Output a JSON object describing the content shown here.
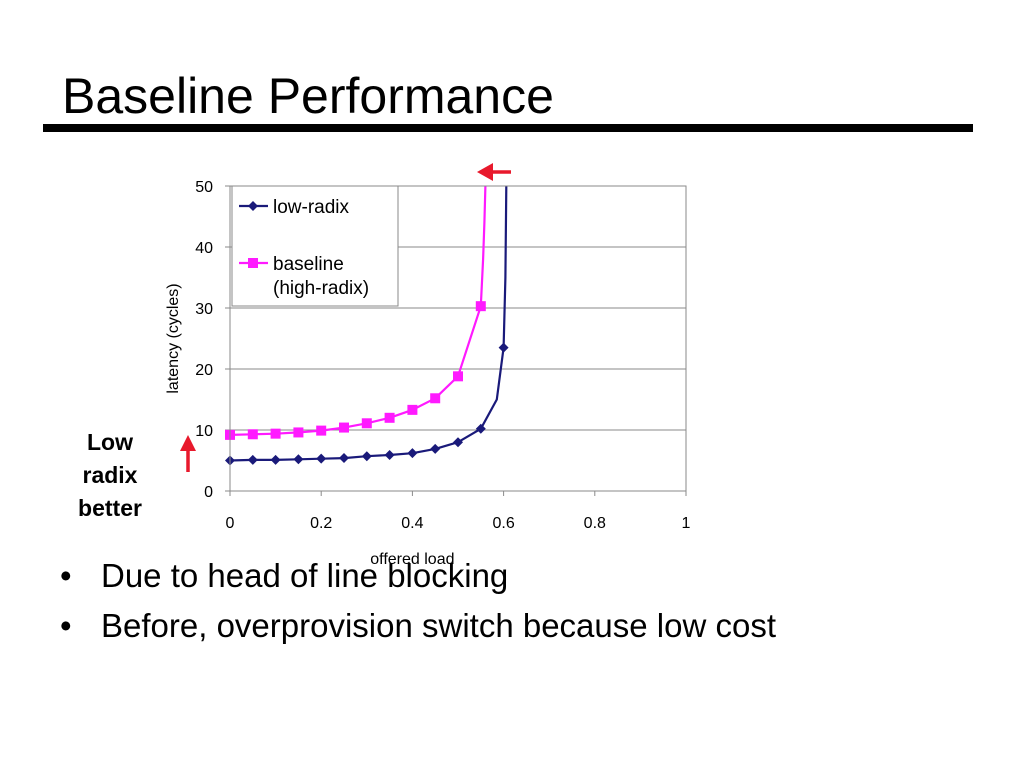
{
  "slide": {
    "title": "Baseline Performance",
    "side_note": [
      "Low",
      "radix",
      "better"
    ],
    "bullets": [
      "Due to head of line blocking",
      "Before, overprovision switch because low cost"
    ],
    "bullet_glyph": "•",
    "arrow_color": "#e8192c"
  },
  "chart_data": {
    "type": "line",
    "title": "",
    "xlabel": "offered load",
    "ylabel": "latency (cycles)",
    "xlim": [
      0,
      1
    ],
    "ylim": [
      0,
      50
    ],
    "xticks": [
      "0",
      "0.2",
      "0.4",
      "0.6",
      "0.8",
      "1"
    ],
    "yticks": [
      "0",
      "10",
      "20",
      "30",
      "40",
      "50"
    ],
    "grid": "horizontal",
    "legend_position": "top-left",
    "series": [
      {
        "name": "low-radix",
        "color": "#1a1a7a",
        "marker": "diamond",
        "points": [
          [
            0.0,
            5.0
          ],
          [
            0.05,
            5.1
          ],
          [
            0.1,
            5.1
          ],
          [
            0.15,
            5.2
          ],
          [
            0.2,
            5.3
          ],
          [
            0.25,
            5.4
          ],
          [
            0.3,
            5.7
          ],
          [
            0.35,
            5.9
          ],
          [
            0.4,
            6.2
          ],
          [
            0.45,
            6.9
          ],
          [
            0.5,
            8.0
          ],
          [
            0.55,
            10.2
          ],
          [
            0.6,
            23.5
          ]
        ],
        "curve_tail": [
          [
            0.585,
            15.0
          ],
          [
            0.6,
            23.5
          ],
          [
            0.604,
            35.0
          ],
          [
            0.606,
            50.0
          ]
        ]
      },
      {
        "name": "baseline\n(high-radix)",
        "color": "#ff1aff",
        "marker": "square",
        "points": [
          [
            0.0,
            9.2
          ],
          [
            0.05,
            9.3
          ],
          [
            0.1,
            9.4
          ],
          [
            0.15,
            9.6
          ],
          [
            0.2,
            9.9
          ],
          [
            0.25,
            10.4
          ],
          [
            0.3,
            11.1
          ],
          [
            0.35,
            12.0
          ],
          [
            0.4,
            13.3
          ],
          [
            0.45,
            15.2
          ],
          [
            0.5,
            18.8
          ],
          [
            0.55,
            30.3
          ]
        ],
        "curve_tail": [
          [
            0.555,
            38.0
          ],
          [
            0.558,
            44.0
          ],
          [
            0.56,
            50.0
          ]
        ]
      }
    ]
  }
}
